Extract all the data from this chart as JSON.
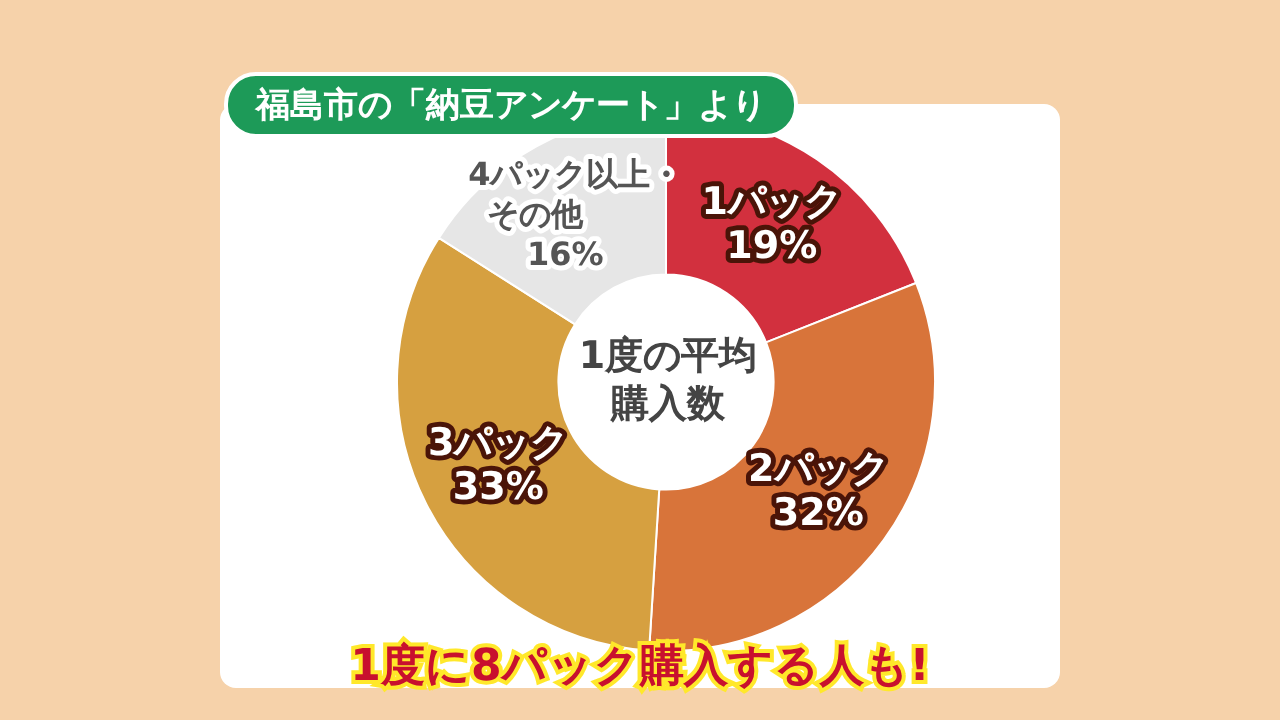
{
  "chart_data": {
    "type": "donut",
    "title": "福島市の「納豆アンケート」より",
    "categories": [
      "1パック",
      "2パック",
      "3パック",
      "4パック以上・その他"
    ],
    "values": [
      19,
      32,
      33,
      16
    ],
    "value_labels": [
      "19%",
      "32%",
      "33%",
      "16%"
    ],
    "colors": [
      "#d2303e",
      "#d8743a",
      "#d6a040",
      "#e6e6e6"
    ],
    "annotations": [
      "1度の平均購入数",
      "1度に8パック購入する人も!"
    ],
    "legend": false
  }
}
